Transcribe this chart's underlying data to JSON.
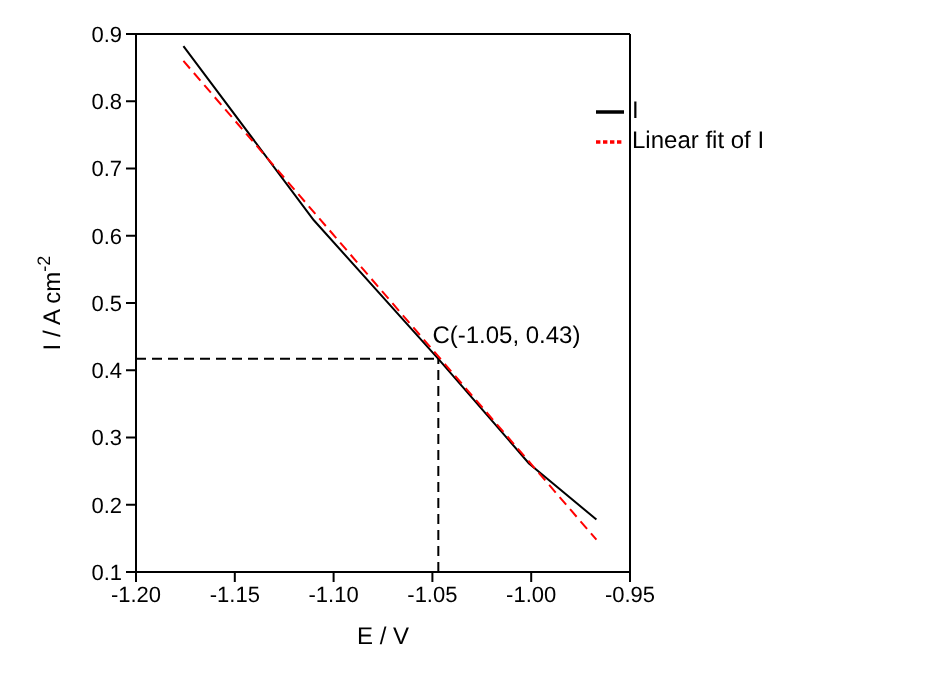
{
  "chart_data": {
    "type": "line",
    "xlabel": "E / V",
    "ylabel": "I / A cm$^{-2}$",
    "xlim": [
      -1.2,
      -0.95
    ],
    "xticks": [
      {
        "value": -1.2,
        "label": "-1.20"
      },
      {
        "value": -1.15,
        "label": "-1.15"
      },
      {
        "value": -1.1,
        "label": "-1.10"
      },
      {
        "value": -1.05,
        "label": "-1.05"
      },
      {
        "value": -1.0,
        "label": "-1.00"
      },
      {
        "value": -0.95,
        "label": "-0.95"
      }
    ],
    "ylim": [
      0.1,
      0.9
    ],
    "yticks": [
      0.1,
      0.2,
      0.3,
      0.4,
      0.5,
      0.6,
      0.7,
      0.8,
      0.9
    ],
    "series": [
      {
        "name": "I",
        "color": "#000000",
        "line_style": "solid",
        "x": [
          -1.176,
          -1.11,
          -1.047,
          -1.001,
          -0.967
        ],
        "values": [
          0.882,
          0.623,
          0.417,
          0.261,
          0.178
        ]
      },
      {
        "name": "Linear fit of I",
        "color": "#ff0000",
        "line_style": "dashed",
        "x": [
          -1.176,
          -0.967
        ],
        "values": [
          0.86,
          0.148
        ]
      }
    ],
    "ref_lines": [
      {
        "axis": "x",
        "value": -1.047,
        "color": "#000000",
        "line_style": "dashed"
      },
      {
        "axis": "y",
        "value": 0.417,
        "color": "#000000",
        "line_style": "dashed"
      }
    ],
    "annotations": [
      {
        "text": "C(-1.05, 0.43)",
        "x": -1.05,
        "y": 0.43
      }
    ],
    "legend": "top right",
    "marker": "none"
  }
}
